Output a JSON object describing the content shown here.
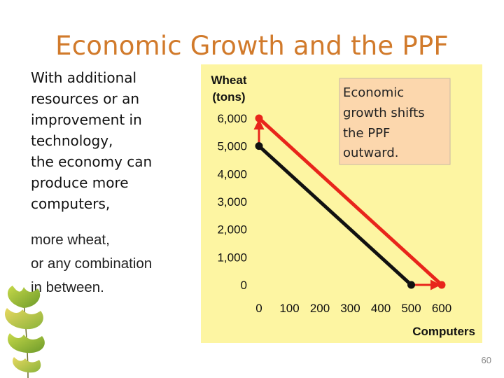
{
  "slide": {
    "title": "Economic Growth and the PPF",
    "page_number": "60"
  },
  "text": {
    "bullet1": [
      "With additional",
      "resources or an",
      "improvement in",
      "technology,",
      "the economy can",
      "produce more",
      "computers,"
    ],
    "bullet2": [
      "more wheat,",
      "or any combination",
      "in between."
    ]
  },
  "callout": {
    "lines": [
      "Economic",
      "growth shifts",
      "the PPF",
      "outward."
    ]
  },
  "colors": {
    "title": "#d17a2b",
    "panel": "#fdf5a2",
    "callout_fill": "#fcd7ad",
    "old_ppf": "#111111",
    "new_ppf": "#e8251b"
  },
  "chart_data": {
    "type": "line",
    "ylabel_lines": [
      "Wheat",
      "(tons)"
    ],
    "xlabel": "Computers",
    "y_ticks": [
      "0",
      "1,000",
      "2,000",
      "3,000",
      "4,000",
      "5,000",
      "6,000"
    ],
    "x_ticks": [
      "0",
      "100",
      "200",
      "300",
      "400",
      "500",
      "600"
    ],
    "xlim": [
      0,
      600
    ],
    "ylim": [
      0,
      6000
    ],
    "series": [
      {
        "role": "original-ppf",
        "color": "#111111",
        "x": [
          0,
          500
        ],
        "y": [
          5000,
          0
        ]
      },
      {
        "role": "new-ppf",
        "color": "#e8251b",
        "x": [
          0,
          600
        ],
        "y": [
          6000,
          0
        ]
      }
    ],
    "arrows": [
      {
        "from": [
          0,
          5000
        ],
        "to": [
          0,
          6000
        ],
        "color": "#e8251b"
      },
      {
        "from": [
          500,
          0
        ],
        "to": [
          600,
          0
        ],
        "color": "#e8251b"
      }
    ]
  }
}
